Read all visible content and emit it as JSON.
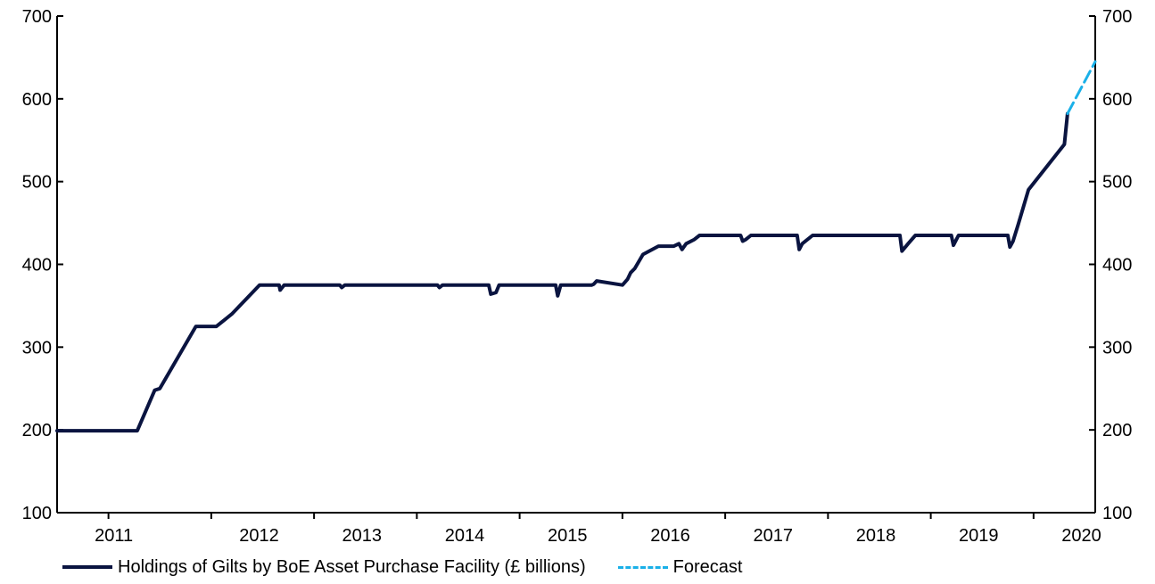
{
  "chart_data": {
    "type": "line",
    "x_tick_labels": [
      "2011",
      "2012",
      "2013",
      "2014",
      "2015",
      "2016",
      "2017",
      "2018",
      "2019",
      "2020"
    ],
    "y_tick_labels": [
      "100",
      "200",
      "300",
      "400",
      "500",
      "600",
      "700"
    ],
    "ylim": [
      100,
      700
    ],
    "xlim": [
      2010.5,
      2020.6
    ],
    "grid": false,
    "legend_position": "bottom",
    "colors": {
      "holdings": "#0a1440",
      "forecast": "#1ab0e8"
    },
    "series": [
      {
        "name": "Holdings of Gilts by BoE Asset Purchase Facility (£ billions)",
        "style": "solid",
        "x": [
          2010.5,
          2011.28,
          2011.45,
          2011.5,
          2011.85,
          2012.05,
          2012.2,
          2012.47,
          2012.66,
          2012.67,
          2012.69,
          2012.71,
          2012.75,
          2013.25,
          2013.27,
          2013.3,
          2014.2,
          2014.22,
          2014.25,
          2014.7,
          2014.72,
          2014.77,
          2014.8,
          2014.83,
          2015.35,
          2015.37,
          2015.4,
          2015.7,
          2015.72,
          2015.75,
          2016.0,
          2016.05,
          2016.08,
          2016.12,
          2016.2,
          2016.35,
          2016.5,
          2016.55,
          2016.58,
          2016.62,
          2016.7,
          2016.75,
          2017.15,
          2017.17,
          2017.2,
          2017.25,
          2017.7,
          2017.72,
          2017.75,
          2017.85,
          2018.7,
          2018.72,
          2018.78,
          2018.85,
          2019.2,
          2019.22,
          2019.27,
          2019.32,
          2019.75,
          2019.77,
          2019.8,
          2019.85,
          2019.95,
          2020.3,
          2020.33
        ],
        "y": [
          199,
          199,
          248,
          250,
          325,
          325,
          340,
          375,
          375,
          369,
          372,
          375,
          375,
          375,
          372,
          375,
          375,
          372,
          375,
          375,
          364,
          366,
          375,
          375,
          375,
          362,
          375,
          375,
          376,
          380,
          375,
          382,
          390,
          395,
          412,
          422,
          422,
          425,
          418,
          425,
          430,
          435,
          435,
          428,
          430,
          435,
          435,
          418,
          425,
          435,
          435,
          416,
          425,
          435,
          435,
          423,
          435,
          435,
          435,
          421,
          428,
          448,
          490,
          545,
          582
        ]
      },
      {
        "name": "Forecast",
        "style": "dashed",
        "x": [
          2020.33,
          2020.6
        ],
        "y": [
          582,
          645
        ]
      }
    ]
  }
}
